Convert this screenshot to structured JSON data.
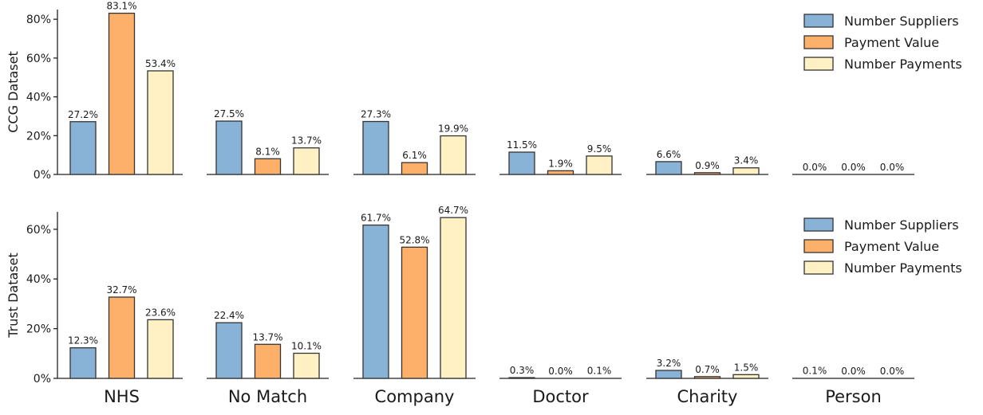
{
  "chart_data": {
    "type": "bar",
    "categories": [
      "NHS",
      "No Match",
      "Company",
      "Doctor",
      "Charity",
      "Person"
    ],
    "series_names": [
      "Number Suppliers",
      "Payment Value",
      "Number Payments"
    ],
    "colors": [
      "#88b2d6",
      "#fdb06a",
      "#fff1c4"
    ],
    "panels": [
      {
        "ylabel": "CCG Dataset",
        "ylim": [
          0,
          85
        ],
        "yticks": [
          0,
          20,
          40,
          60,
          80
        ],
        "ytick_labels": [
          "0%",
          "20%",
          "40%",
          "60%",
          "80%"
        ],
        "legend_position": "top-right",
        "series": [
          {
            "name": "Number Suppliers",
            "values": [
              27.2,
              27.5,
              27.3,
              11.5,
              6.6,
              0.0
            ],
            "labels": [
              "27.2%",
              "27.5%",
              "27.3%",
              "11.5%",
              "6.6%",
              "0.0%"
            ]
          },
          {
            "name": "Payment Value",
            "values": [
              83.1,
              8.1,
              6.1,
              1.9,
              0.9,
              0.0
            ],
            "labels": [
              "83.1%",
              "8.1%",
              "6.1%",
              "1.9%",
              "0.9%",
              "0.0%"
            ]
          },
          {
            "name": "Number Payments",
            "values": [
              53.4,
              13.7,
              19.9,
              9.5,
              3.4,
              0.0
            ],
            "labels": [
              "53.4%",
              "13.7%",
              "19.9%",
              "9.5%",
              "3.4%",
              "0.0%"
            ]
          }
        ]
      },
      {
        "ylabel": "Trust Dataset",
        "ylim": [
          0,
          67
        ],
        "yticks": [
          0,
          20,
          40,
          60
        ],
        "ytick_labels": [
          "0%",
          "20%",
          "40%",
          "60%"
        ],
        "legend_position": "top-right",
        "series": [
          {
            "name": "Number Suppliers",
            "values": [
              12.3,
              22.4,
              61.7,
              0.3,
              3.2,
              0.1
            ],
            "labels": [
              "12.3%",
              "22.4%",
              "61.7%",
              "0.3%",
              "3.2%",
              "0.1%"
            ]
          },
          {
            "name": "Payment Value",
            "values": [
              32.7,
              13.7,
              52.8,
              0.0,
              0.7,
              0.0
            ],
            "labels": [
              "32.7%",
              "13.7%",
              "52.8%",
              "0.0%",
              "0.7%",
              "0.0%"
            ]
          },
          {
            "name": "Number Payments",
            "values": [
              23.6,
              10.1,
              64.7,
              0.1,
              1.5,
              0.0
            ],
            "labels": [
              "23.6%",
              "10.1%",
              "64.7%",
              "0.1%",
              "1.5%",
              "0.0%"
            ]
          }
        ]
      }
    ]
  }
}
